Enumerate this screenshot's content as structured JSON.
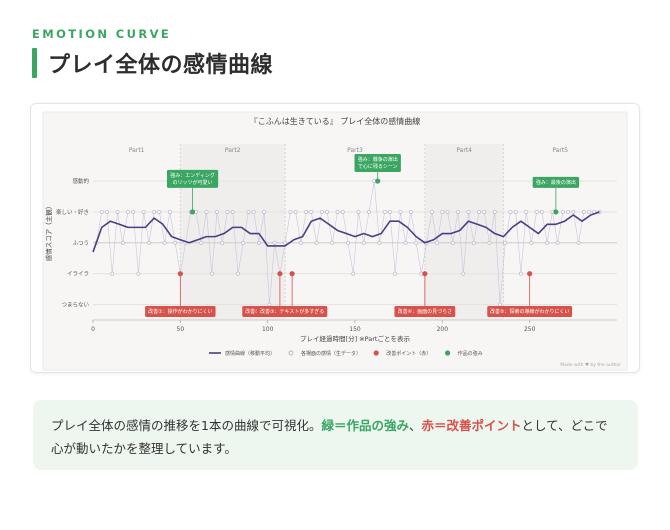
{
  "header": {
    "eyebrow": "EMOTION CURVE",
    "title": "プレイ全体の感情曲線"
  },
  "note": {
    "part1": "プレイ全体の感情の推移を1本の曲線で可視化。",
    "green": "緑＝作品の強み",
    "sep": "、",
    "red": "赤＝改善ポイント",
    "part2": "として、どこで心が動いたかを整理しています。"
  },
  "colors": {
    "accent_green": "#3aa662",
    "accent_red": "#d6524b",
    "curve": "#4a3f86",
    "raw_points": "#c9c6dc"
  },
  "chart_data": {
    "type": "line",
    "title": "『こふんは生きている』 プレイ全体の感情曲線",
    "xlabel": "プレイ経過時間[分] ※Partごとを表示",
    "ylabel": "感情スコア（主観）",
    "xlim": [
      0,
      300
    ],
    "ylim": [
      -2.5,
      3.2
    ],
    "x_ticks": [
      0,
      50,
      100,
      150,
      200,
      250
    ],
    "y_ticks": [
      {
        "value": 2,
        "label": "感動的"
      },
      {
        "value": 1,
        "label": "楽しい・好き"
      },
      {
        "value": 0,
        "label": "ふつう"
      },
      {
        "value": -1,
        "label": "イライラ"
      },
      {
        "value": -2,
        "label": "つまらない"
      }
    ],
    "parts": [
      {
        "label": "Part1",
        "start": 0,
        "end": 50
      },
      {
        "label": "Part2",
        "start": 50,
        "end": 110
      },
      {
        "label": "Part3",
        "start": 110,
        "end": 190
      },
      {
        "label": "Part4",
        "start": 190,
        "end": 235
      },
      {
        "label": "Part5",
        "start": 235,
        "end": 300
      }
    ],
    "series": [
      {
        "name": "感情曲線（移動平均）",
        "x": [
          0,
          5,
          10,
          15,
          20,
          25,
          30,
          35,
          40,
          45,
          50,
          55,
          60,
          65,
          70,
          75,
          80,
          85,
          90,
          95,
          100,
          105,
          110,
          115,
          120,
          125,
          130,
          135,
          140,
          145,
          150,
          155,
          160,
          165,
          170,
          175,
          180,
          185,
          190,
          195,
          200,
          205,
          210,
          215,
          220,
          225,
          230,
          235,
          240,
          245,
          250,
          255,
          260,
          265,
          270,
          275,
          280,
          285,
          290
        ],
        "values": [
          -0.3,
          0.5,
          0.7,
          0.6,
          0.5,
          0.5,
          0.5,
          0.8,
          0.6,
          0.2,
          0.1,
          0.0,
          0.1,
          0.2,
          0.2,
          0.3,
          0.5,
          0.5,
          0.3,
          0.3,
          -0.1,
          -0.1,
          -0.1,
          0.1,
          0.2,
          0.7,
          0.8,
          0.6,
          0.4,
          0.3,
          0.2,
          0.3,
          0.2,
          0.3,
          0.7,
          0.7,
          0.5,
          0.2,
          0.0,
          0.1,
          0.3,
          0.3,
          0.4,
          0.7,
          0.6,
          0.5,
          0.3,
          0.2,
          0.5,
          0.7,
          0.5,
          0.3,
          0.6,
          0.6,
          0.7,
          0.9,
          0.7,
          0.9,
          1.0
        ]
      },
      {
        "name": "各場面の感情（生データ）",
        "x": [
          2,
          5,
          8,
          11,
          14,
          17,
          20,
          23,
          26,
          29,
          32,
          35,
          38,
          41,
          44,
          47,
          50,
          53,
          56,
          59,
          62,
          65,
          68,
          71,
          74,
          77,
          80,
          83,
          86,
          89,
          92,
          95,
          98,
          101,
          104,
          107,
          110,
          113,
          116,
          119,
          122,
          125,
          128,
          131,
          134,
          137,
          140,
          143,
          146,
          149,
          152,
          155,
          158,
          161,
          164,
          167,
          170,
          173,
          176,
          179,
          182,
          185,
          188,
          191,
          194,
          197,
          200,
          203,
          206,
          209,
          212,
          215,
          218,
          221,
          224,
          227,
          230,
          233,
          236,
          239,
          242,
          245,
          248,
          251,
          254,
          257,
          260,
          263,
          266,
          269,
          272,
          275,
          278,
          281,
          284,
          287,
          290
        ],
        "values": [
          0,
          1,
          1,
          -1,
          1,
          0,
          1,
          1,
          -1,
          1,
          0,
          1,
          1,
          0,
          1,
          0,
          -1,
          0,
          1,
          1,
          0,
          1,
          -1,
          1,
          0,
          1,
          1,
          -1,
          0,
          1,
          1,
          0,
          1,
          -2,
          0,
          -1,
          0,
          1,
          1,
          0,
          1,
          1,
          0,
          1,
          1,
          0,
          1,
          1,
          0,
          -1,
          1,
          0,
          1,
          2,
          0,
          1,
          1,
          -1,
          1,
          0,
          1,
          0,
          -1,
          0,
          1,
          0,
          1,
          1,
          0,
          1,
          -1,
          1,
          0,
          1,
          1,
          0,
          1,
          -2,
          0,
          1,
          1,
          -1,
          1,
          0,
          1,
          1,
          0,
          1,
          0,
          1,
          1,
          1,
          0,
          1,
          1,
          1,
          1
        ]
      }
    ],
    "annotations": [
      {
        "type": "good",
        "x": 57,
        "y": 1,
        "label": "強み：エンディング\nのリッツが可愛い"
      },
      {
        "type": "good",
        "x": 163,
        "y": 2,
        "label": "強み：戦争の演出\nで心に残るシーン"
      },
      {
        "type": "good",
        "x": 265,
        "y": 1,
        "label": "強み：最後の演出"
      },
      {
        "type": "bad",
        "x": 50,
        "y": -1,
        "label": "改善①：操作がわかりにくい"
      },
      {
        "type": "bad",
        "x": 107,
        "y": -1,
        "label": "改善②：パズルの難易度が高い"
      },
      {
        "type": "bad",
        "x": 114,
        "y": -1,
        "label": "改善③：テキストが多すぎる"
      },
      {
        "type": "bad",
        "x": 190,
        "y": -1,
        "label": "改善④：画面の見づらさ"
      },
      {
        "type": "bad",
        "x": 250,
        "y": -1,
        "label": "改善⑤：探索の導線がわかりにくい"
      }
    ],
    "legend": [
      {
        "kind": "line",
        "label": "感情曲線（移動平均）"
      },
      {
        "kind": "raw",
        "label": "各場面の感情（生データ）"
      },
      {
        "kind": "bad",
        "label": "改善ポイント（赤）"
      },
      {
        "kind": "good",
        "label": "作品の強み"
      }
    ],
    "legend_position": "bottom",
    "grid": true,
    "credit": "Made with ♥ by the author"
  }
}
